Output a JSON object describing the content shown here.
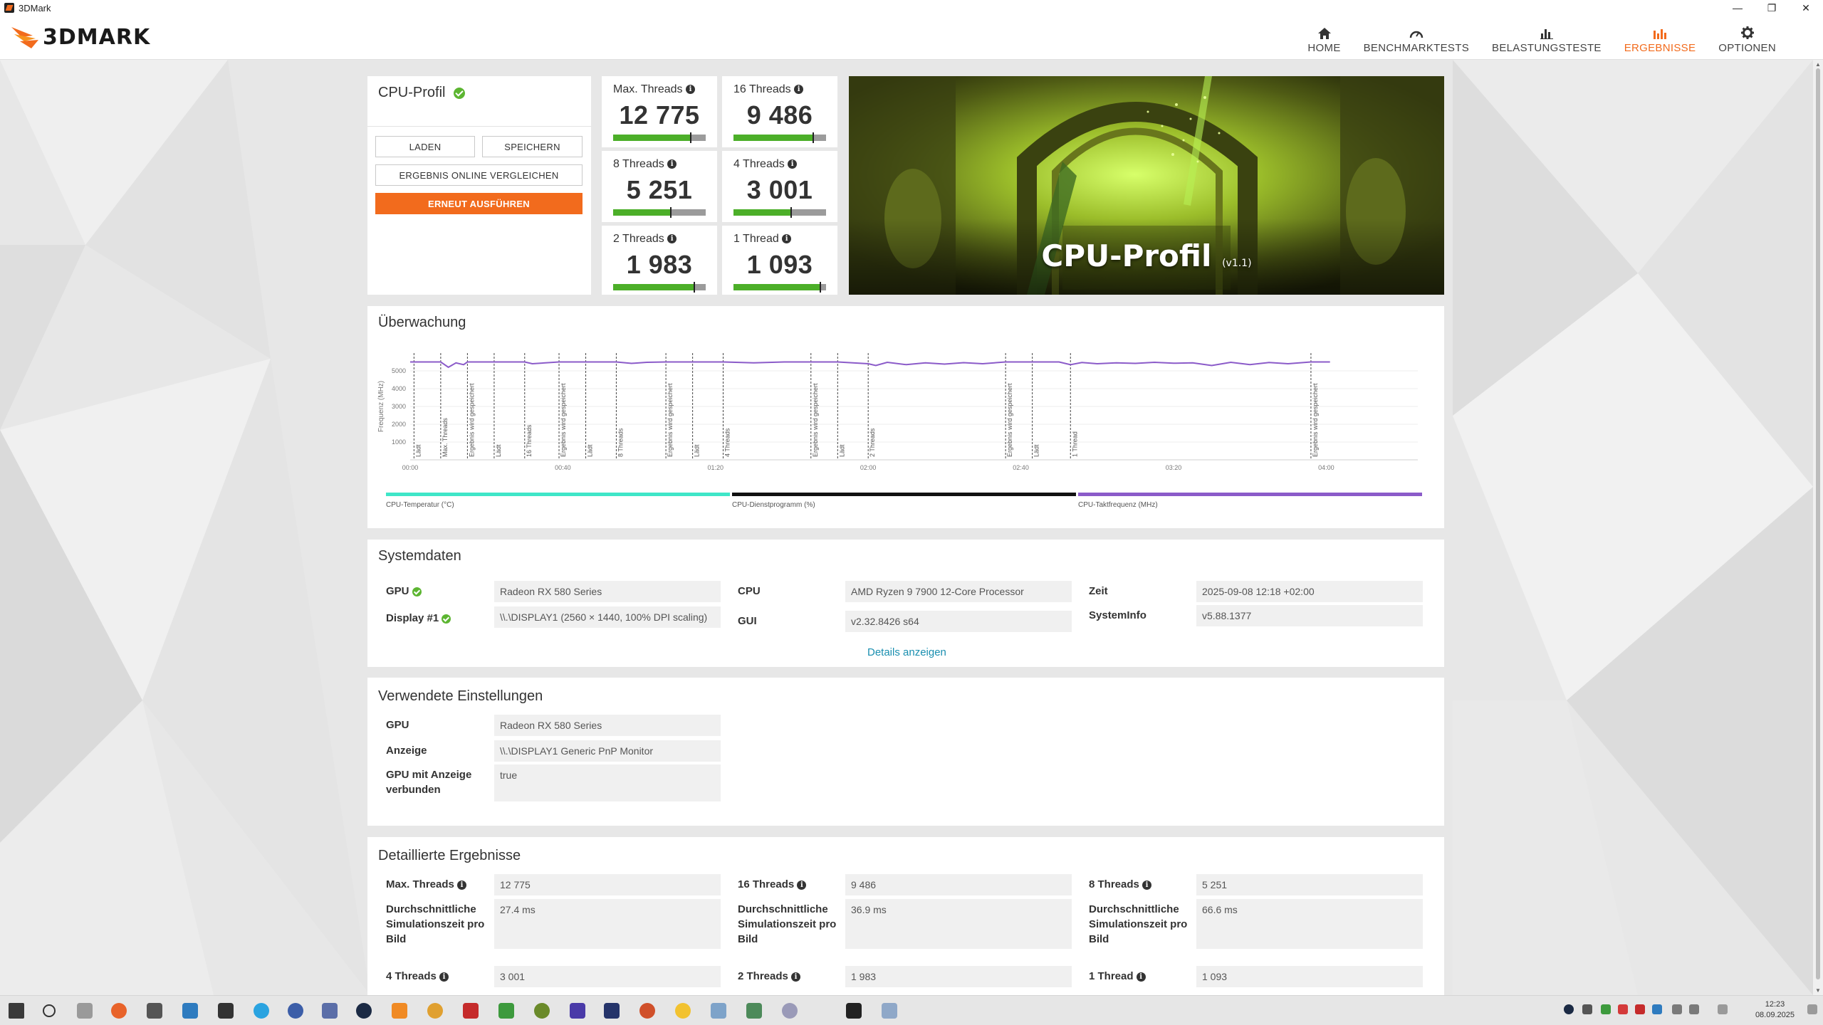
{
  "window": {
    "title": "3DMark"
  },
  "header": {
    "logo_text": "3DMARK",
    "nav": [
      {
        "label": "HOME",
        "icon": "home-icon",
        "active": false
      },
      {
        "label": "BENCHMARKTESTS",
        "icon": "gauge-icon",
        "active": false
      },
      {
        "label": "BELASTUNGSTESTE",
        "icon": "bar-chart-icon",
        "active": false
      },
      {
        "label": "ERGEBNISSE",
        "icon": "results-icon",
        "active": true
      },
      {
        "label": "OPTIONEN",
        "icon": "gear-icon",
        "active": false
      }
    ]
  },
  "accent_color": "#f26b1d",
  "profile_card": {
    "title": "CPU-Profil",
    "load_label": "LADEN",
    "save_label": "SPEICHERN",
    "compare_label": "ERGEBNIS ONLINE VERGLEICHEN",
    "rerun_label": "ERNEUT AUSFÜHREN"
  },
  "scores": [
    {
      "label": "Max. Threads",
      "value": "12 775",
      "bar_fraction": 0.84
    },
    {
      "label": "16 Threads",
      "value": "9 486",
      "bar_fraction": 0.86
    },
    {
      "label": "8 Threads",
      "value": "5 251",
      "bar_fraction": 0.62
    },
    {
      "label": "4 Threads",
      "value": "3 001",
      "bar_fraction": 0.62
    },
    {
      "label": "2 Threads",
      "value": "1 983",
      "bar_fraction": 0.88
    },
    {
      "label": "1 Thread",
      "value": "1 093",
      "bar_fraction": 0.94
    }
  ],
  "hero": {
    "title": "CPU-Profil",
    "version": "(v1.1)"
  },
  "monitoring": {
    "title": "Überwachung",
    "ylabel": "Frequenz (MHz)",
    "legend": [
      {
        "label": "CPU-Temperatur (°C)",
        "color": "#3fe6c8"
      },
      {
        "label": "CPU-Dienstprogramm (%)",
        "color": "#111111"
      },
      {
        "label": "CPU-Taktfrequenz (MHz)",
        "color": "#8b5bc9"
      }
    ]
  },
  "chart_data": {
    "type": "line",
    "ylabel": "Frequenz (MHz)",
    "xlim": [
      0,
      264
    ],
    "ylim": [
      0,
      6000
    ],
    "y_ticks": [
      1000,
      2000,
      3000,
      4000,
      5000
    ],
    "x_ticks": [
      {
        "t": 0,
        "label": "00:00"
      },
      {
        "t": 40,
        "label": "00:40"
      },
      {
        "t": 80,
        "label": "01:20"
      },
      {
        "t": 120,
        "label": "02:00"
      },
      {
        "t": 160,
        "label": "02:40"
      },
      {
        "t": 200,
        "label": "03:20"
      },
      {
        "t": 240,
        "label": "04:00"
      }
    ],
    "markers": [
      {
        "t": 1,
        "label": "Lädt"
      },
      {
        "t": 8,
        "label": "Max. Threads"
      },
      {
        "t": 15,
        "label": "Ergebnis wird gespeichert"
      },
      {
        "t": 22,
        "label": "Lädt"
      },
      {
        "t": 30,
        "label": "16 Threads"
      },
      {
        "t": 39,
        "label": "Ergebnis wird gespeichert"
      },
      {
        "t": 46,
        "label": "Lädt"
      },
      {
        "t": 54,
        "label": "8 Threads"
      },
      {
        "t": 67,
        "label": "Ergebnis wird gespeichert"
      },
      {
        "t": 74,
        "label": "Lädt"
      },
      {
        "t": 82,
        "label": "4 Threads"
      },
      {
        "t": 105,
        "label": "Ergebnis wird gespeichert"
      },
      {
        "t": 112,
        "label": "Lädt"
      },
      {
        "t": 120,
        "label": "2 Threads"
      },
      {
        "t": 156,
        "label": "Ergebnis wird gespeichert"
      },
      {
        "t": 163,
        "label": "Lädt"
      },
      {
        "t": 173,
        "label": "1 Thread"
      },
      {
        "t": 236,
        "label": "Ergebnis wird gespeichert"
      }
    ],
    "series": [
      {
        "name": "CPU-Taktfrequenz (MHz)",
        "color": "#8b5bc9",
        "t": [
          0,
          8,
          10,
          12,
          14,
          15,
          22,
          30,
          32,
          39,
          46,
          54,
          58,
          62,
          67,
          74,
          82,
          90,
          98,
          105,
          112,
          120,
          122,
          125,
          130,
          135,
          140,
          145,
          150,
          156,
          163,
          170,
          173,
          176,
          180,
          185,
          190,
          195,
          200,
          205,
          210,
          215,
          220,
          225,
          230,
          236,
          241
        ],
        "values": [
          5500,
          5500,
          5200,
          5450,
          5350,
          5500,
          5500,
          5500,
          5400,
          5500,
          5500,
          5500,
          5420,
          5480,
          5500,
          5500,
          5500,
          5450,
          5500,
          5500,
          5500,
          5400,
          5300,
          5480,
          5350,
          5450,
          5380,
          5460,
          5400,
          5500,
          5500,
          5500,
          5350,
          5470,
          5400,
          5450,
          5420,
          5480,
          5430,
          5450,
          5300,
          5480,
          5350,
          5470,
          5400,
          5500,
          5500
        ]
      }
    ]
  },
  "system_data": {
    "title": "Systemdaten",
    "rows": [
      {
        "label": "GPU",
        "value": "Radeon RX 580 Series",
        "check": true
      },
      {
        "label": "Display #1",
        "value": "\\\\.\\DISPLAY1 (2560 × 1440, 100% DPI scaling)",
        "check": true
      },
      {
        "label": "CPU",
        "value": "AMD Ryzen 9 7900 12-Core Processor"
      },
      {
        "label": "GUI",
        "value": "v2.32.8426 s64"
      },
      {
        "label": "Zeit",
        "value": "2025-09-08 12:18 +02:00"
      },
      {
        "label": "SystemInfo",
        "value": "v5.88.1377"
      }
    ],
    "details_link": "Details anzeigen"
  },
  "settings": {
    "title": "Verwendete Einstellungen",
    "rows": [
      {
        "label": "GPU",
        "value": "Radeon RX 580 Series"
      },
      {
        "label": "Anzeige",
        "value": "\\\\.\\DISPLAY1 Generic PnP Monitor"
      },
      {
        "label": "GPU mit Anzeige verbunden",
        "value": "true"
      }
    ]
  },
  "detailed": {
    "title": "Detaillierte Ergebnisse",
    "groups": [
      {
        "label": "Max. Threads",
        "value": "12 775",
        "sim_label": "Durchschnittliche Simulationszeit pro Bild",
        "sim_value": "27.4 ms"
      },
      {
        "label": "16 Threads",
        "value": "9 486",
        "sim_label": "Durchschnittliche Simulationszeit pro Bild",
        "sim_value": "36.9 ms"
      },
      {
        "label": "8 Threads",
        "value": "5 251",
        "sim_label": "Durchschnittliche Simulationszeit pro Bild",
        "sim_value": "66.6 ms"
      },
      {
        "label": "4 Threads",
        "value": "3 001"
      },
      {
        "label": "2 Threads",
        "value": "1 983"
      },
      {
        "label": "1 Thread",
        "value": "1 093"
      }
    ]
  },
  "taskbar": {
    "clock_time": "12:23",
    "clock_date": "08.09.2025"
  }
}
